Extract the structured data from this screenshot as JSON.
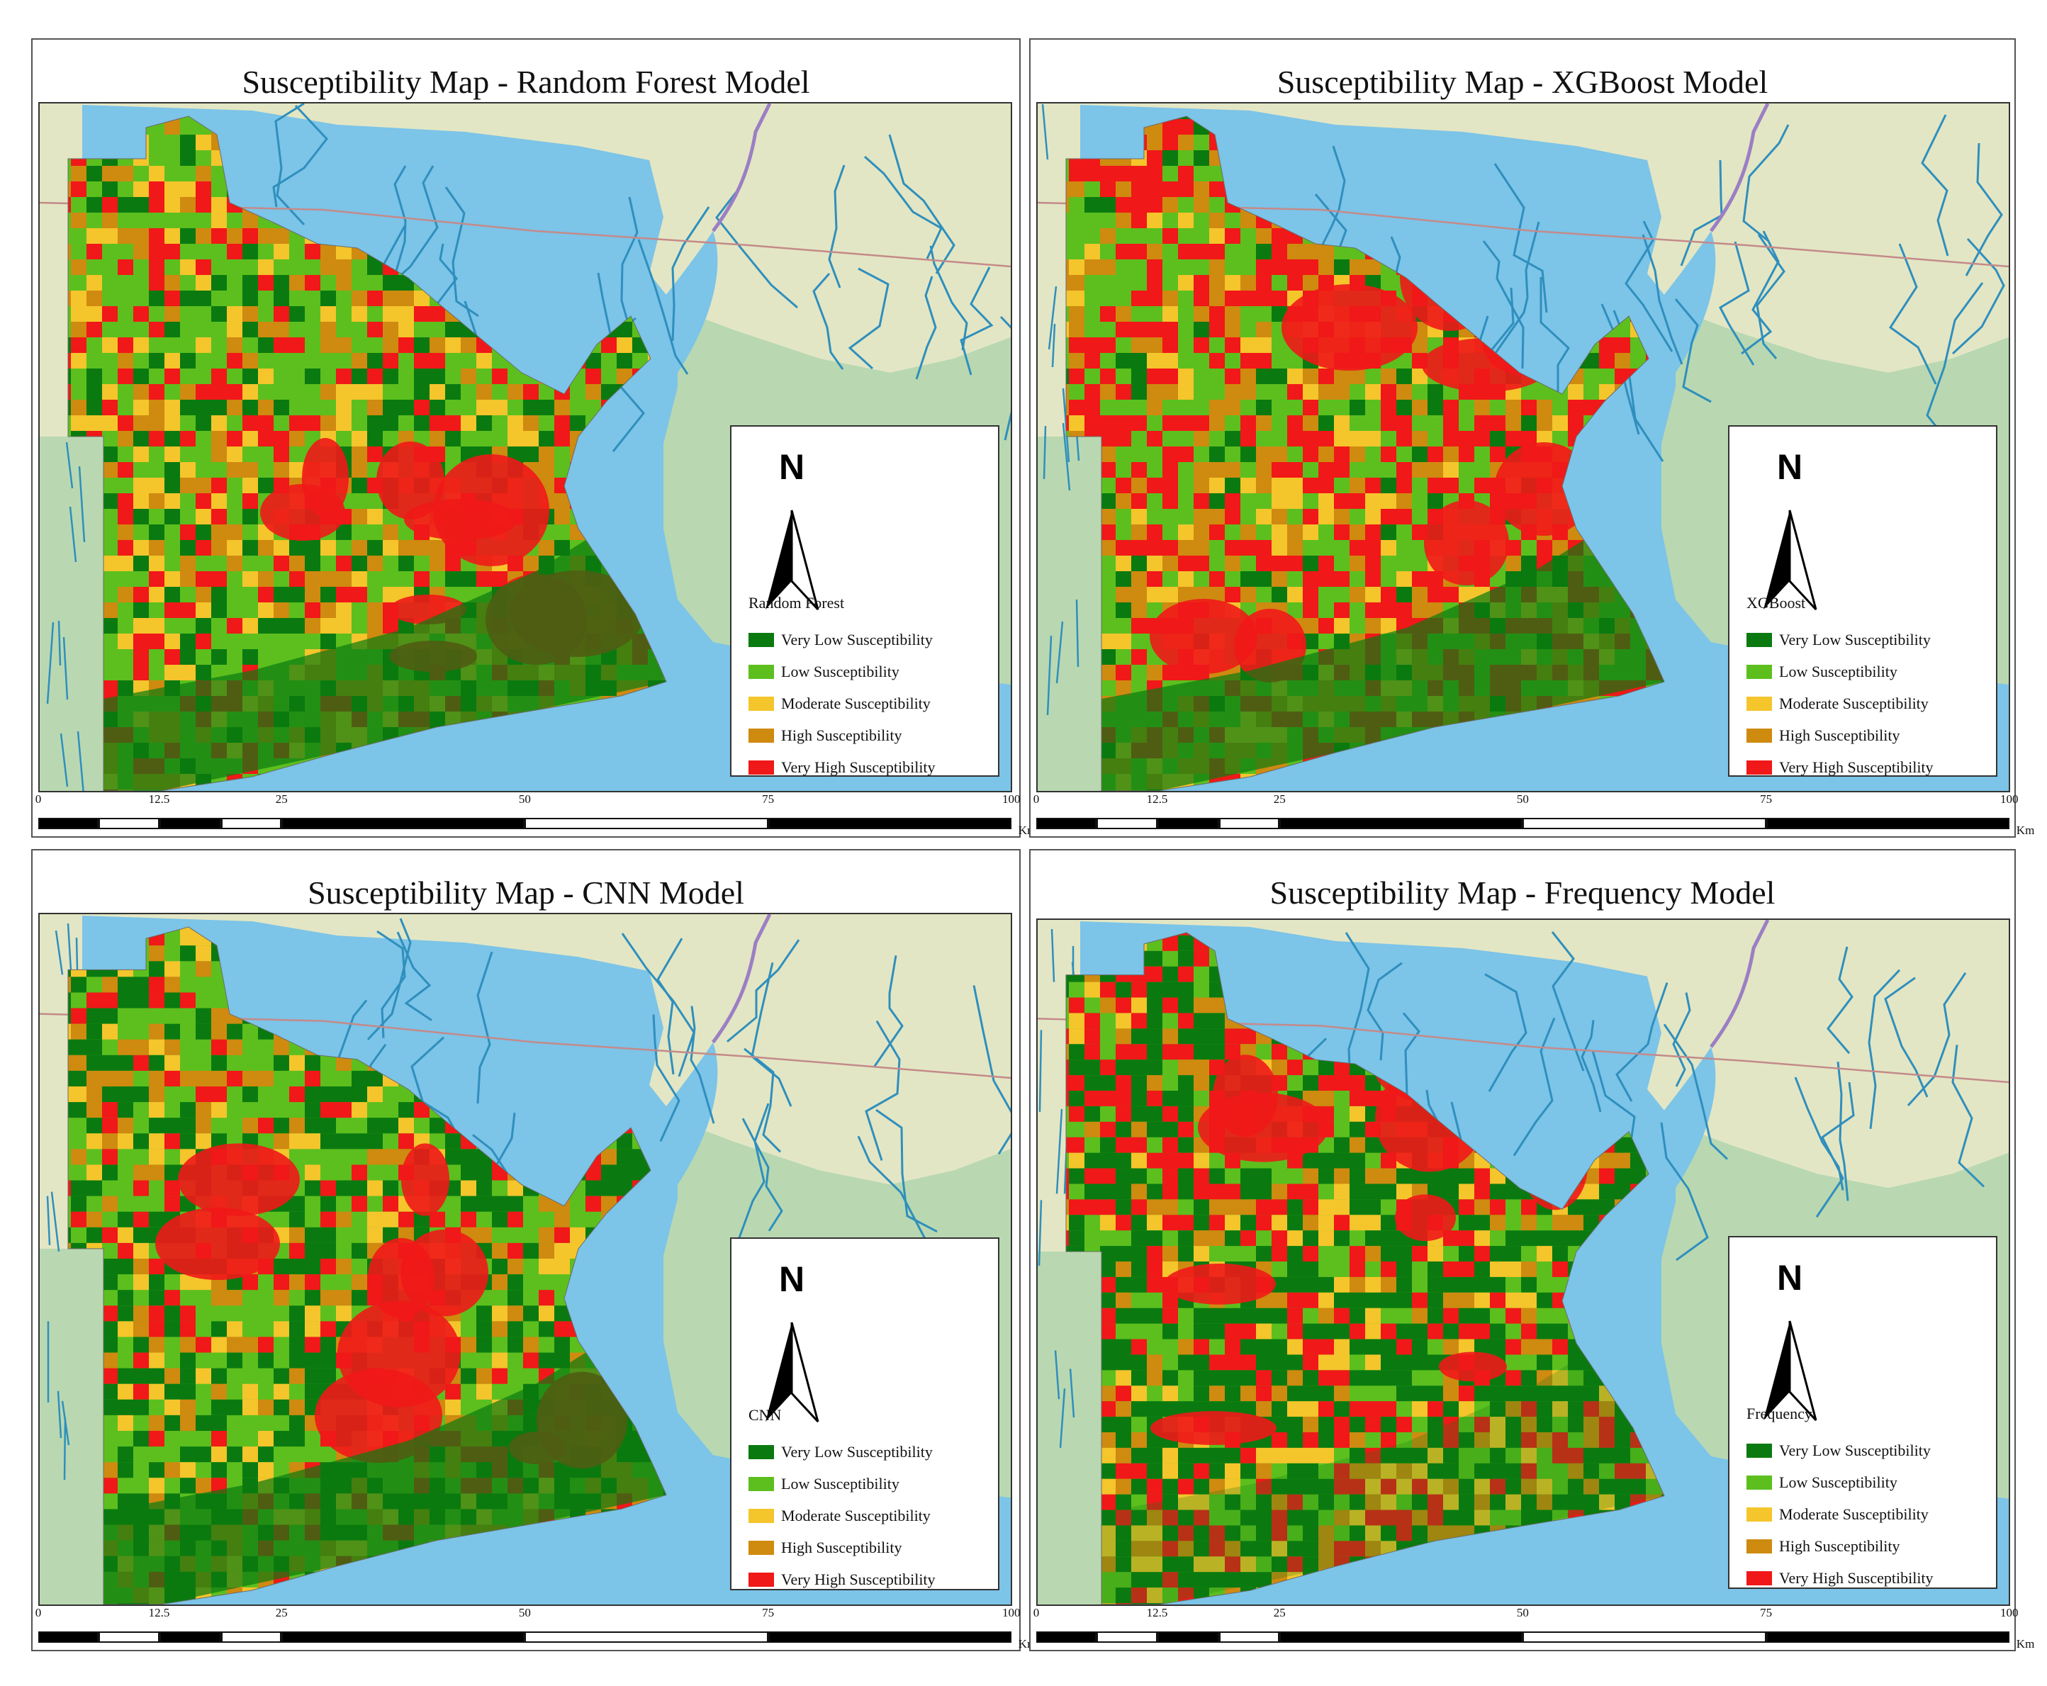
{
  "panels": [
    {
      "id": "rf",
      "title": "Susceptibility Map - Random Forest Model",
      "legend_title": "Random Forest",
      "scheme": "rf"
    },
    {
      "id": "xgb",
      "title": "Susceptibility Map - XGBoost Model",
      "legend_title": "XGBoost",
      "scheme": "xgb"
    },
    {
      "id": "cnn",
      "title": "Susceptibility Map - CNN Model",
      "legend_title": "CNN",
      "scheme": "cnn"
    },
    {
      "id": "freq",
      "title": "Susceptibility Map - Frequency Model",
      "legend_title": "Frequency",
      "scheme": "freq"
    }
  ],
  "north_label": "N",
  "legend_classes": [
    {
      "label": "Very Low Susceptibility",
      "color": "#0a7a10"
    },
    {
      "label": "Low Susceptibility",
      "color": "#5cbf1e"
    },
    {
      "label": "Moderate Susceptibility",
      "color": "#f5c52c"
    },
    {
      "label": "High Susceptibility",
      "color": "#cf8a10"
    },
    {
      "label": "Very High Susceptibility",
      "color": "#f01818"
    }
  ],
  "scale_bar": {
    "ticks": [
      "0",
      "12.5",
      "25",
      "50",
      "75",
      "100"
    ],
    "unit": "Km"
  },
  "colors": {
    "water": "#7cc4e8",
    "land": "#e3e6c4",
    "land_green": "#b9d8b1",
    "river": "#2f8fbd",
    "road": "#c48a8a"
  }
}
